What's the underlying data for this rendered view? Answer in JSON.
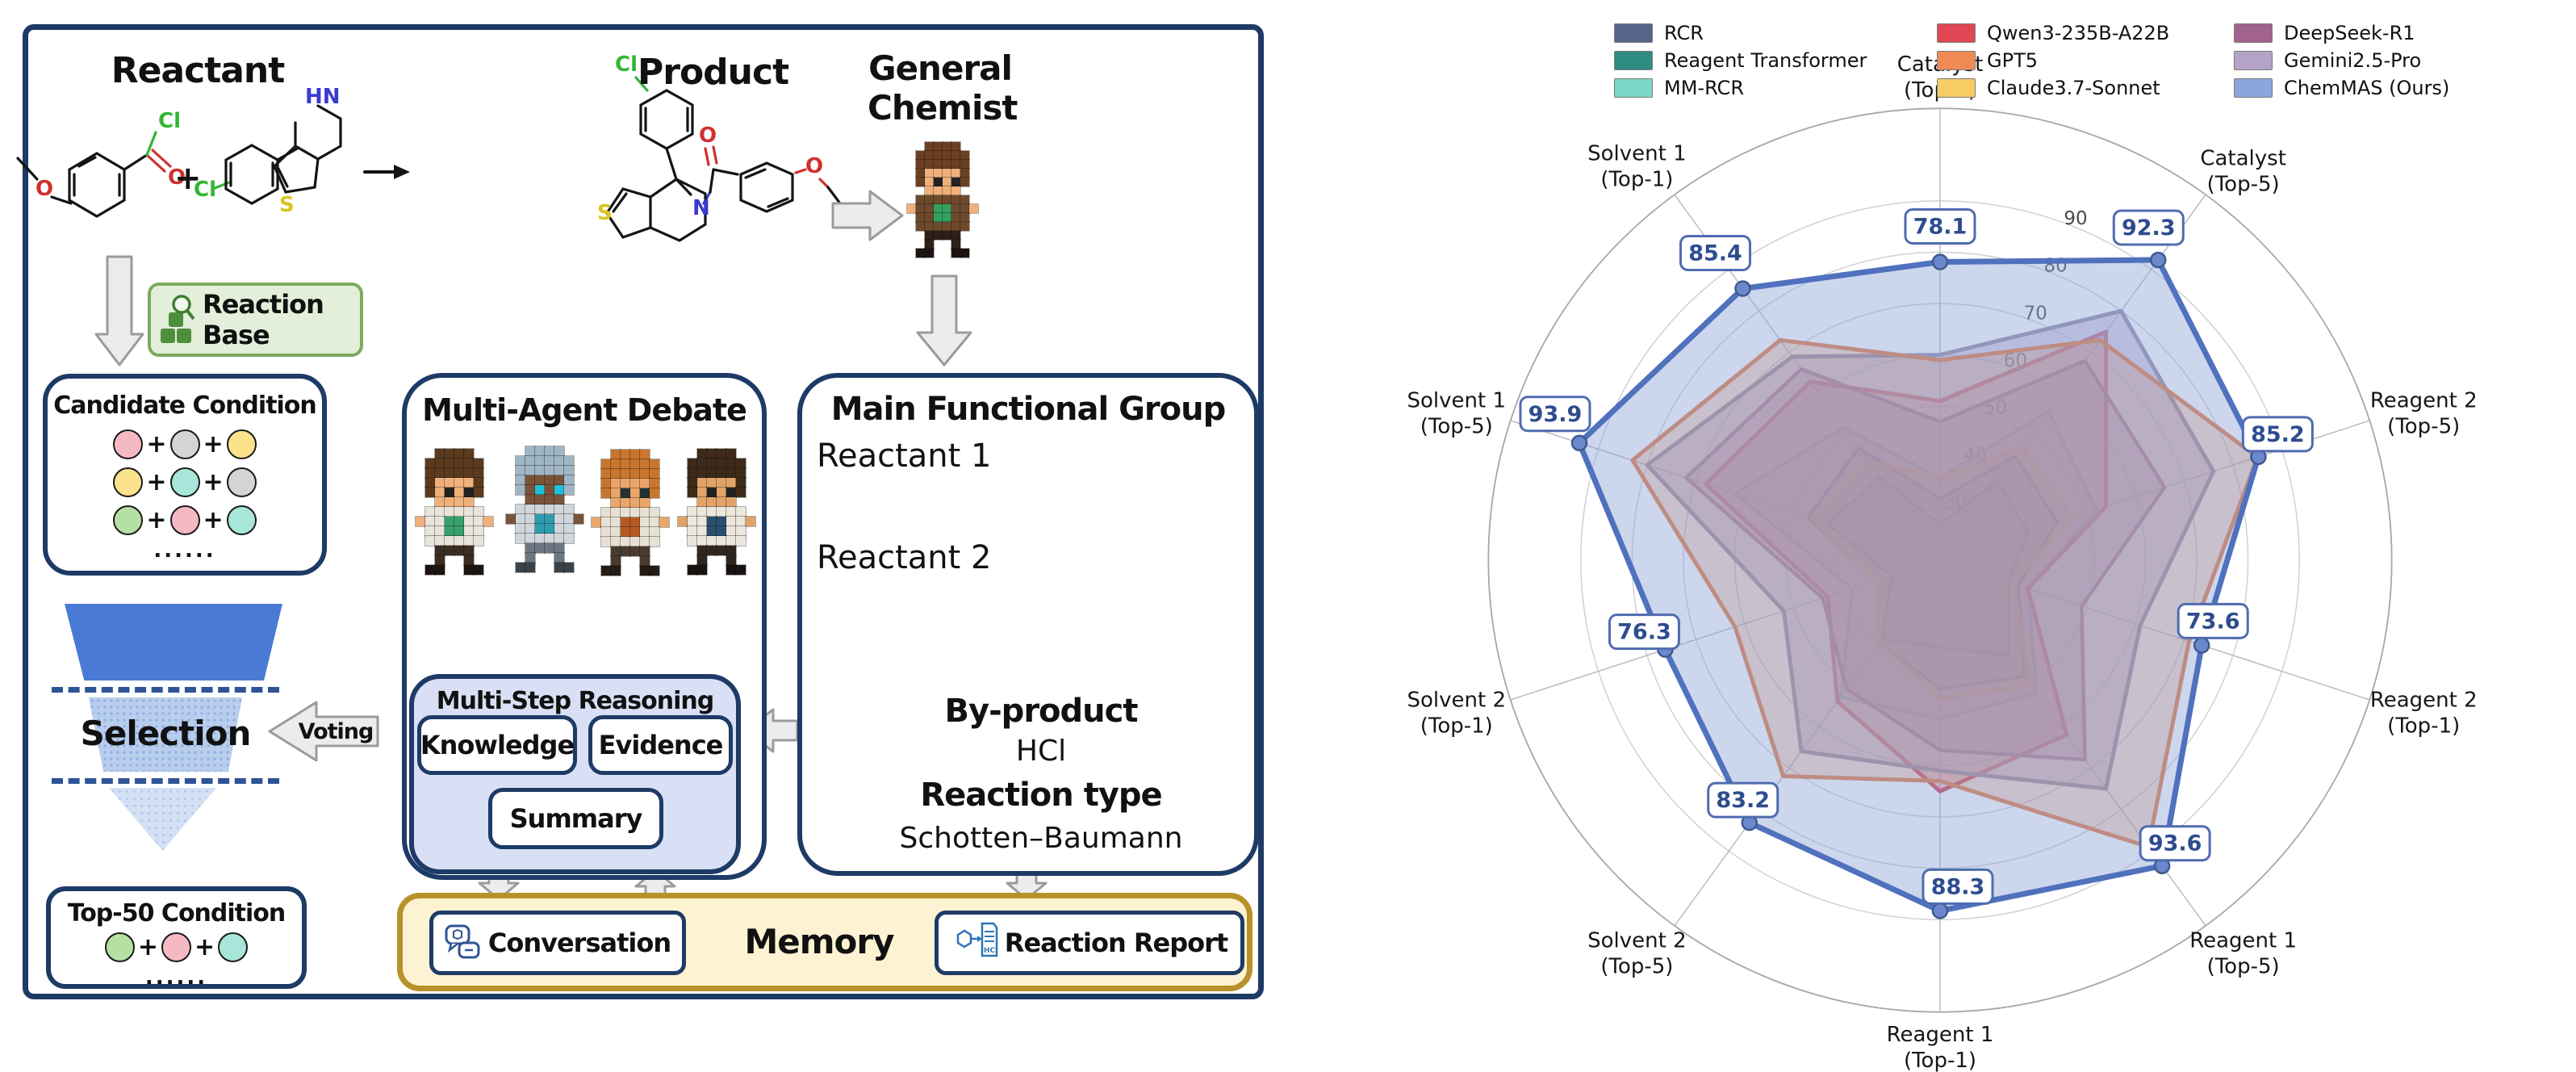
{
  "diagram": {
    "reactant_title": "Reactant",
    "product_title": "Product",
    "general_chemist_line1": "General",
    "general_chemist_line2": "Chemist",
    "plus": "+",
    "reaction_base": "Reaction Base",
    "candidate": {
      "title": "Candidate Condition",
      "rows": [
        [
          "pink",
          "gray",
          "yellow"
        ],
        [
          "yellow",
          "teal",
          "gray"
        ],
        [
          "green",
          "pink",
          "teal"
        ]
      ],
      "ellipsis": "......"
    },
    "selection": "Selection",
    "voting": "Voting",
    "top50": {
      "title": "Top-50 Condition",
      "row": [
        "green",
        "pink",
        "teal"
      ],
      "ellipsis": "......"
    },
    "debate_title": "Multi-Agent Debate",
    "reasoning": {
      "title": "Multi-Step Reasoning",
      "boxes": [
        "Knowledge",
        "Evidence",
        "Summary"
      ]
    },
    "memory": {
      "title": "Memory",
      "conversation": "Conversation",
      "report": "Reaction Report"
    },
    "mfg": {
      "title": "Main Functional Group",
      "reactant1": "Reactant 1",
      "reactant2": "Reactant 2",
      "byproduct_label": "By-product",
      "byproduct_value": "HCl",
      "rxn_type_label": "Reaction type",
      "rxn_type_value": "Schotten–Baumann"
    },
    "atoms": {
      "cl": "Cl",
      "o": "O",
      "hn": "HN",
      "n": "N",
      "s": "S",
      "hcl": "HCl"
    },
    "palette": {
      "pink": "#f5b9c4",
      "gray": "#d4d4d4",
      "yellow": "#fce28c",
      "teal": "#a8e6da",
      "green": "#b6dfa4"
    }
  },
  "chart_data": {
    "type": "radar",
    "categories": [
      "Catalyst (Top-1)",
      "Catalyst (Top-5)",
      "Reagent 2 (Top-5)",
      "Reagent 2 (Top-1)",
      "Reagent 1 (Top-5)",
      "Reagent 1 (Top-1)",
      "Solvent 2 (Top-5)",
      "Solvent 2 (Top-1)",
      "Solvent 1 (Top-5)",
      "Solvent 1 (Top-1)"
    ],
    "r_min": 20,
    "r_max": 108,
    "r_ticks": [
      30,
      40,
      50,
      60,
      70,
      80,
      90
    ],
    "grid": true,
    "legend_position": "top",
    "series": [
      {
        "name": "RCR",
        "color": "#4c5a7d",
        "swatch": "#566489",
        "values": [
          32,
          45,
          44,
          36,
          48,
          45,
          40,
          33,
          47,
          47
        ]
      },
      {
        "name": "Reagent Transformer",
        "color": "#2f8c81",
        "swatch": "#2f8c81",
        "values": [
          27,
          39,
          38,
          34,
          43,
          37,
          39,
          30,
          43,
          40
        ]
      },
      {
        "name": "MM-RCR",
        "color": "#6fd0bd",
        "swatch": "#7cd8c6",
        "values": [
          36,
          56,
          52,
          38,
          52,
          51,
          53,
          38,
          62,
          52
        ]
      },
      {
        "name": "Qwen3-235B-A22B",
        "color": "#d63c49",
        "swatch": "#e04653",
        "values": [
          51,
          75,
          54,
          38,
          62,
          65,
          54,
          43,
          68,
          63
        ]
      },
      {
        "name": "GPT5",
        "color": "#e5793f",
        "swatch": "#ef8a55",
        "values": [
          59,
          73,
          85,
          71,
          89,
          63,
          72,
          62,
          83,
          73
        ]
      },
      {
        "name": "Claude3.7-Sonnet",
        "color": "#e9bd52",
        "swatch": "#f6cc63",
        "values": [
          36,
          47,
          47,
          35,
          50,
          47,
          40,
          33,
          46,
          44
        ]
      },
      {
        "name": "DeepSeek-R1",
        "color": "#95537f",
        "swatch": "#a2628e",
        "values": [
          47,
          68,
          66,
          49,
          68,
          57,
          51,
          44,
          72,
          66
        ]
      },
      {
        "name": "Gemini2.5-Pro",
        "color": "#948bab",
        "swatch": "#b4a3c6",
        "fill": "#b3a4c7",
        "values": [
          60,
          80,
          76,
          61,
          75,
          61,
          66,
          52,
          80,
          69
        ]
      },
      {
        "name": "ChemMAS (Ours)",
        "color": "#5071bd",
        "swatch": "#8ba6dd",
        "fill": "#8da5d8",
        "labeled": true,
        "values": [
          78.1,
          92.3,
          85.2,
          73.6,
          93.6,
          88.3,
          83.2,
          76.3,
          93.9,
          85.4
        ]
      }
    ]
  }
}
